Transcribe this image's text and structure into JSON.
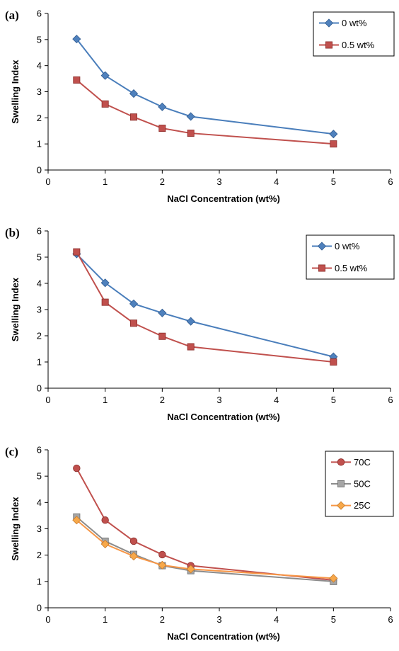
{
  "chart_data": [
    {
      "panel_label": "(a)",
      "type": "line",
      "xlabel": "NaCl Concentration (wt%)",
      "ylabel": "Swelling Index",
      "xlim": [
        0,
        6
      ],
      "ylim": [
        0,
        6
      ],
      "xticks": [
        0,
        1,
        2,
        3,
        4,
        5,
        6
      ],
      "yticks": [
        0,
        1,
        2,
        3,
        4,
        5,
        6
      ],
      "legend_position": "top-right",
      "series": [
        {
          "name": "0 wt%",
          "marker": "diamond",
          "color": "#4a7ebb",
          "fill": "#4f81bd",
          "x": [
            0.5,
            1,
            1.5,
            2,
            2.5,
            5
          ],
          "y": [
            5.02,
            3.62,
            2.93,
            2.42,
            2.05,
            1.38
          ]
        },
        {
          "name": "0.5 wt%",
          "marker": "square",
          "color": "#c0504d",
          "fill": "#c0504d",
          "x": [
            0.5,
            1,
            1.5,
            2,
            2.5,
            5
          ],
          "y": [
            3.45,
            2.53,
            2.03,
            1.6,
            1.41,
            1.0
          ]
        }
      ]
    },
    {
      "panel_label": "(b)",
      "type": "line",
      "xlabel": "NaCl Concentration (wt%)",
      "ylabel": "Swelling Index",
      "xlim": [
        0,
        6
      ],
      "ylim": [
        0,
        6
      ],
      "xticks": [
        0,
        1,
        2,
        3,
        4,
        5,
        6
      ],
      "yticks": [
        0,
        1,
        2,
        3,
        4,
        5,
        6
      ],
      "legend_position": "top-right",
      "series": [
        {
          "name": "0 wt%",
          "marker": "diamond",
          "color": "#4a7ebb",
          "fill": "#4f81bd",
          "x": [
            0.5,
            1,
            1.5,
            2,
            2.5,
            5
          ],
          "y": [
            5.12,
            4.02,
            3.22,
            2.87,
            2.55,
            1.2
          ]
        },
        {
          "name": "0.5 wt%",
          "marker": "square",
          "color": "#c0504d",
          "fill": "#c0504d",
          "x": [
            0.5,
            1,
            1.5,
            2,
            2.5,
            5
          ],
          "y": [
            5.2,
            3.28,
            2.48,
            1.98,
            1.58,
            1.0
          ]
        }
      ]
    },
    {
      "panel_label": "(c)",
      "type": "line",
      "xlabel": "NaCl Concentration (wt%)",
      "ylabel": "Swelling Index",
      "xlim": [
        0,
        6
      ],
      "ylim": [
        0,
        6
      ],
      "xticks": [
        0,
        1,
        2,
        3,
        4,
        5,
        6
      ],
      "yticks": [
        0,
        1,
        2,
        3,
        4,
        5,
        6
      ],
      "legend_position": "top-right",
      "series": [
        {
          "name": "70C",
          "marker": "circle",
          "color": "#c0504d",
          "fill": "#c0504d",
          "x": [
            0.5,
            1,
            1.5,
            2,
            2.5,
            5
          ],
          "y": [
            5.3,
            3.33,
            2.53,
            2.02,
            1.6,
            1.05
          ]
        },
        {
          "name": "50C",
          "marker": "square",
          "color": "#8c8c8c",
          "fill": "#a6a6a6",
          "x": [
            0.5,
            1,
            1.5,
            2,
            2.5,
            5
          ],
          "y": [
            3.45,
            2.53,
            2.03,
            1.6,
            1.41,
            1.0
          ]
        },
        {
          "name": "25C",
          "marker": "diamond",
          "color": "#f79646",
          "fill": "#f7a84a",
          "x": [
            0.5,
            1,
            1.5,
            2,
            2.5,
            5
          ],
          "y": [
            3.33,
            2.42,
            1.96,
            1.62,
            1.47,
            1.12
          ]
        }
      ]
    }
  ]
}
